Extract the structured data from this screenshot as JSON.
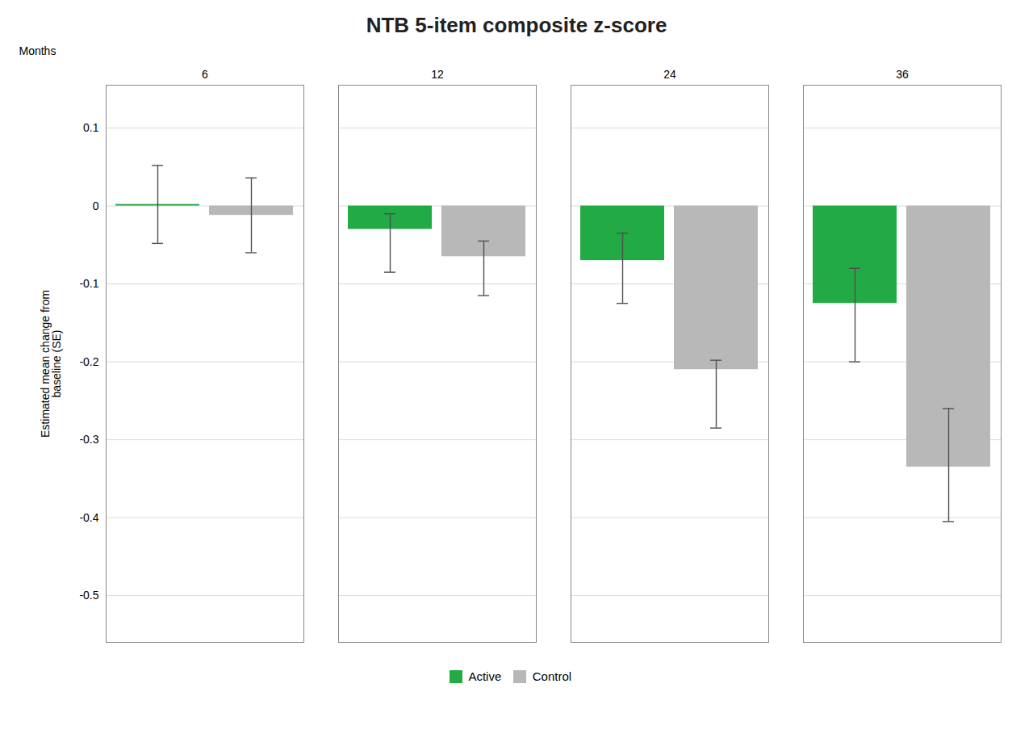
{
  "chart_data": {
    "type": "bar",
    "title": "NTB 5-item composite z-score",
    "xlabel": "Months",
    "ylabel": "Estimated mean change from\nbaseline (SE)",
    "categories": [
      "6",
      "12",
      "24",
      "36"
    ],
    "series": [
      {
        "name": "Active",
        "color": "#22aa44",
        "values": [
          0.002,
          -0.03,
          -0.07,
          -0.125
        ],
        "err_lo": [
          0.05,
          0.055,
          0.055,
          0.075
        ],
        "err_hi": [
          0.05,
          0.02,
          0.035,
          0.045
        ]
      },
      {
        "name": "Control",
        "color": "#b8b8b8",
        "values": [
          -0.012,
          -0.065,
          -0.21,
          -0.335
        ],
        "err_lo": [
          0.048,
          0.05,
          0.075,
          0.07
        ],
        "err_hi": [
          0.048,
          0.02,
          0.012,
          0.075
        ]
      }
    ],
    "ylim": [
      -0.56,
      0.155
    ],
    "yticks": [
      0.1,
      0,
      -0.1,
      -0.2,
      -0.3,
      -0.4,
      -0.5
    ],
    "grid": true,
    "legend": "bottom"
  }
}
